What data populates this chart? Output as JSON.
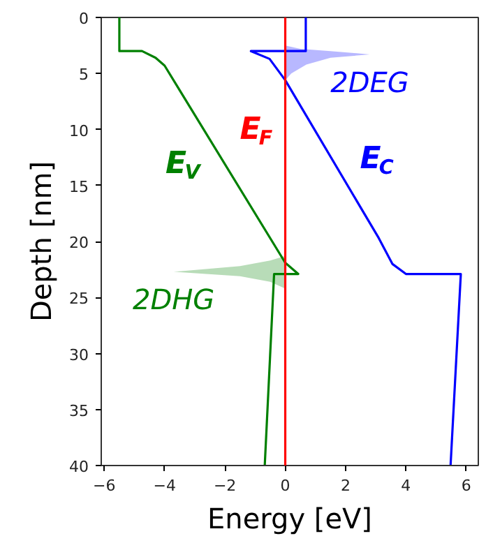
{
  "chart_data": {
    "type": "line",
    "xlabel": "Energy [eV]",
    "ylabel": "Depth [nm]",
    "xlim": [
      -6.1,
      6.4
    ],
    "ylim": [
      40,
      0
    ],
    "xticks": [
      {
        "value": -6,
        "label": "−6"
      },
      {
        "value": -4,
        "label": "−4"
      },
      {
        "value": -2,
        "label": "−2"
      },
      0,
      2,
      4,
      6
    ],
    "yticks": [
      0,
      5,
      10,
      15,
      20,
      25,
      30,
      35,
      40
    ],
    "grid": false,
    "marker": "none",
    "line_style": "solid",
    "ref_lines": [
      {
        "axis": "x",
        "value": 0,
        "label": "E$_{F}$",
        "color": "#ff0000"
      }
    ],
    "series": [
      {
        "name": "E$_{V}$",
        "color": "#008000",
        "x": [
          -5.5,
          -5.5,
          -4.75,
          -4.3,
          -4.0,
          0,
          0.43,
          -0.37,
          -0.68
        ],
        "values": [
          0,
          3,
          3,
          3.6,
          4.3,
          21.9,
          22.9,
          22.9,
          40
        ]
      },
      {
        "name": "E$_{C}$",
        "color": "#0000ff",
        "x": [
          0.68,
          0.68,
          -1.14,
          -0.52,
          0,
          3.1,
          3.55,
          4.0,
          5.82,
          5.48
        ],
        "values": [
          0,
          3,
          3,
          3.7,
          5.6,
          19.7,
          22,
          22.9,
          22.9,
          40
        ]
      },
      {
        "name": "2DEG",
        "type": "area",
        "color": "#0000ff",
        "x": [
          0,
          0.5,
          1.5,
          2.8,
          1.5,
          0.7,
          0.2,
          0
        ],
        "values": [
          2.5,
          2.8,
          3.0,
          3.3,
          3.6,
          4.2,
          5.0,
          5.6
        ]
      },
      {
        "name": "2DHG",
        "type": "area",
        "color": "#008000",
        "x": [
          0,
          -0.5,
          -1.5,
          -3.7,
          -1.5,
          -0.5,
          0
        ],
        "values": [
          21.3,
          21.7,
          22.2,
          22.7,
          23.1,
          23.6,
          24.2
        ]
      }
    ]
  }
}
